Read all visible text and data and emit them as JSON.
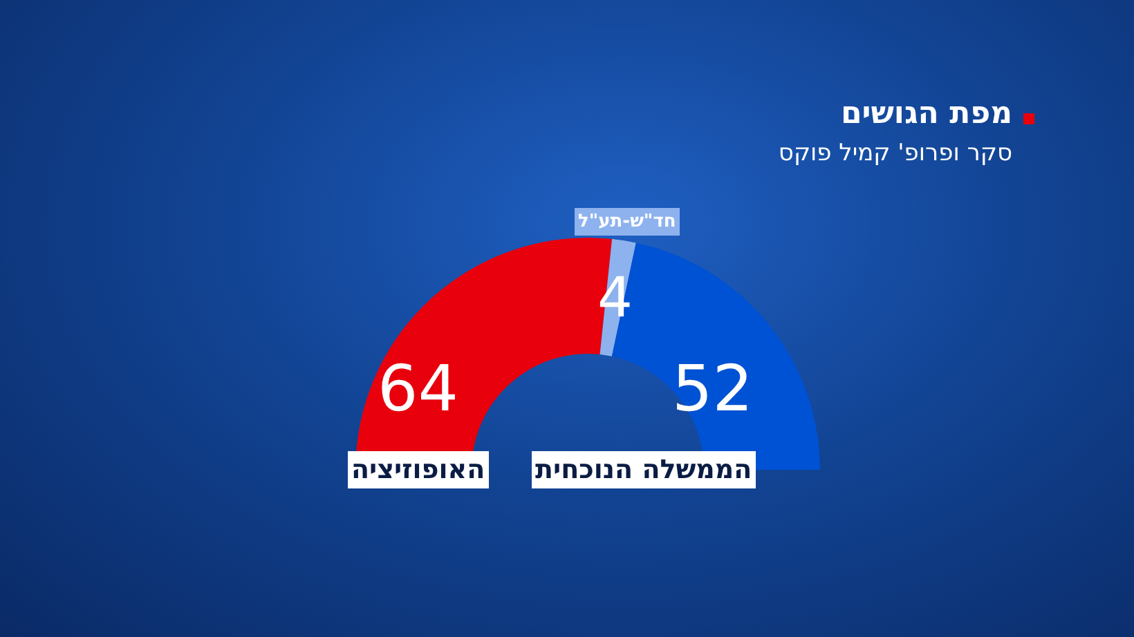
{
  "chart_data": {
    "type": "donut",
    "title": "מפת הגושים",
    "subtitle": "סקר ופרופ' קמיל פוקס",
    "categories": [
      "האופוזיציה",
      "חד\"ש-תע\"ל",
      "הממשלה הנוכחית"
    ],
    "values": [
      64,
      4,
      52
    ],
    "colors": [
      "#e8000c",
      "#8db2ee",
      "#0052d4"
    ],
    "data_labels": true
  }
}
